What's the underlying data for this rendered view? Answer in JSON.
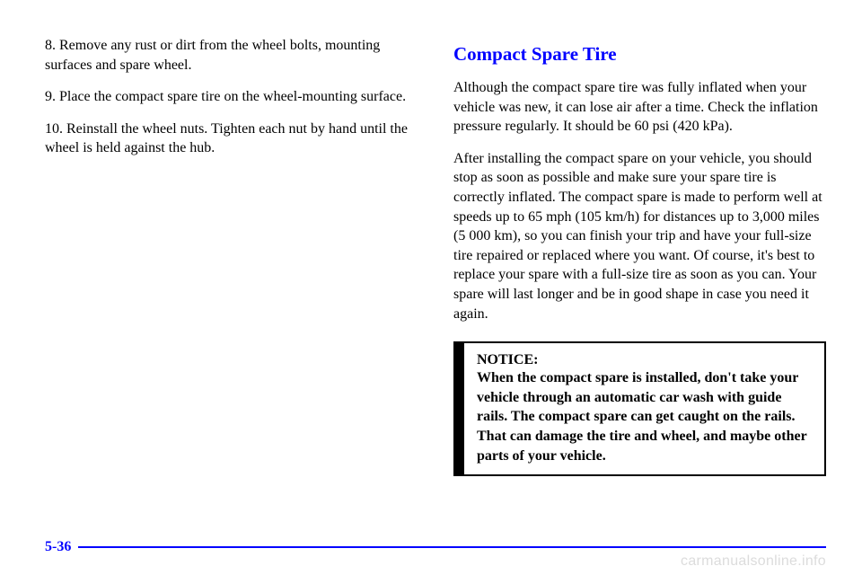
{
  "left": {
    "step8": "8. Remove any rust or dirt from the wheel bolts, mounting surfaces and spare wheel.",
    "step9": "9. Place the compact spare tire on the wheel-mounting surface.",
    "step10": "10. Reinstall the wheel nuts. Tighten each nut by hand until the wheel is held against the hub."
  },
  "right": {
    "heading": "Compact Spare Tire",
    "p1": "Although the compact spare tire was fully inflated when your vehicle was new, it can lose air after a time. Check the inflation pressure regularly. It should be 60 psi (420 kPa).",
    "p2": "After installing the compact spare on your vehicle, you should stop as soon as possible and make sure your spare tire is correctly inflated. The compact spare is made to perform well at speeds up to 65 mph (105 km/h) for distances up to 3,000 miles (5 000 km), so you can finish your trip and have your full-size tire repaired or replaced where you want. Of course, it's best to replace your spare with a full-size tire as soon as you can. Your spare will last longer and be in good shape in case you need it again.",
    "notice_label": "NOTICE:",
    "notice_text": "When the compact spare is installed, don't take your vehicle through an automatic car wash with guide rails. The compact spare can get caught on the rails. That can damage the tire and wheel, and maybe other parts of your vehicle."
  },
  "footer": {
    "page_number": "5-36"
  },
  "watermark": "carmanualsonline.info",
  "colors": {
    "accent": "#0000ff",
    "text": "#000000",
    "watermark": "#dcdcdc",
    "background": "#ffffff"
  }
}
